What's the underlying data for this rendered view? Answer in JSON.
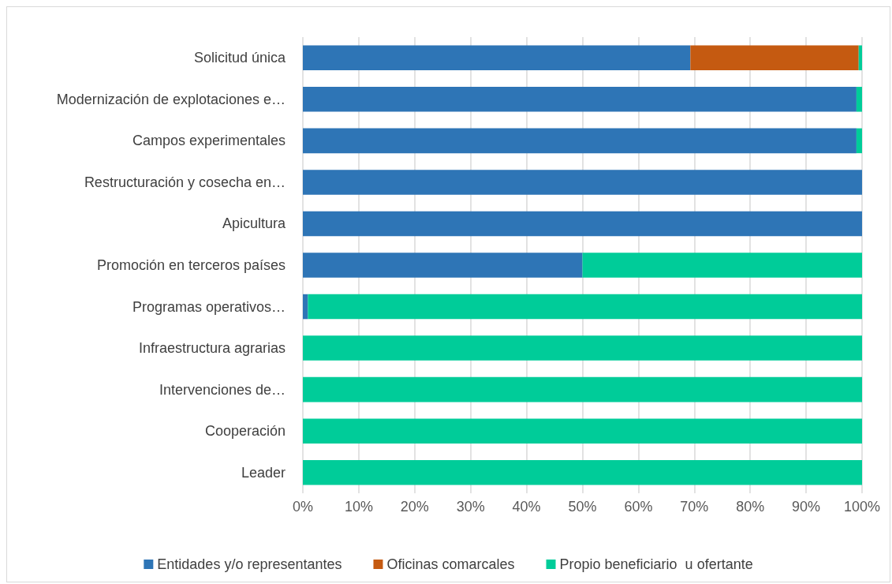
{
  "chart_data": {
    "type": "bar",
    "orientation": "horizontal",
    "stacked": true,
    "categories": [
      "Solicitud única",
      "Modernización de explotaciones e…",
      "Campos experimentales",
      "Restructuración y cosecha en…",
      "Apicultura",
      "Promoción en terceros países",
      "Programas operativos…",
      "Infraestructura agrarias",
      "Intervenciones de…",
      "Cooperación",
      "Leader"
    ],
    "series": [
      {
        "name": "Entidades y/o representantes",
        "color": "#2e75b6",
        "values": [
          69.3,
          99,
          99,
          100,
          100,
          50,
          0.9,
          0,
          0,
          0,
          0
        ]
      },
      {
        "name": "Oficinas comarcales",
        "color": "#c55a11",
        "values": [
          30.1,
          0,
          0,
          0,
          0,
          0,
          0,
          0,
          0,
          0,
          0
        ]
      },
      {
        "name": "Propio beneficiario  u ofertante",
        "color": "#00cc99",
        "values": [
          0.6,
          1,
          1,
          0,
          0,
          50,
          99.1,
          100,
          100,
          100,
          100
        ]
      }
    ],
    "xlim": [
      0,
      100
    ],
    "xticks": [
      {
        "value": 0,
        "label": "0%"
      },
      {
        "value": 10,
        "label": "10%"
      },
      {
        "value": 20,
        "label": "20%"
      },
      {
        "value": 30,
        "label": "30%"
      },
      {
        "value": 40,
        "label": "40%"
      },
      {
        "value": 50,
        "label": "50%"
      },
      {
        "value": 60,
        "label": "60%"
      },
      {
        "value": 70,
        "label": "70%"
      },
      {
        "value": 80,
        "label": "80%"
      },
      {
        "value": 90,
        "label": "90%"
      },
      {
        "value": 100,
        "label": "100%"
      }
    ],
    "grid": "x",
    "legend": "bottom"
  }
}
